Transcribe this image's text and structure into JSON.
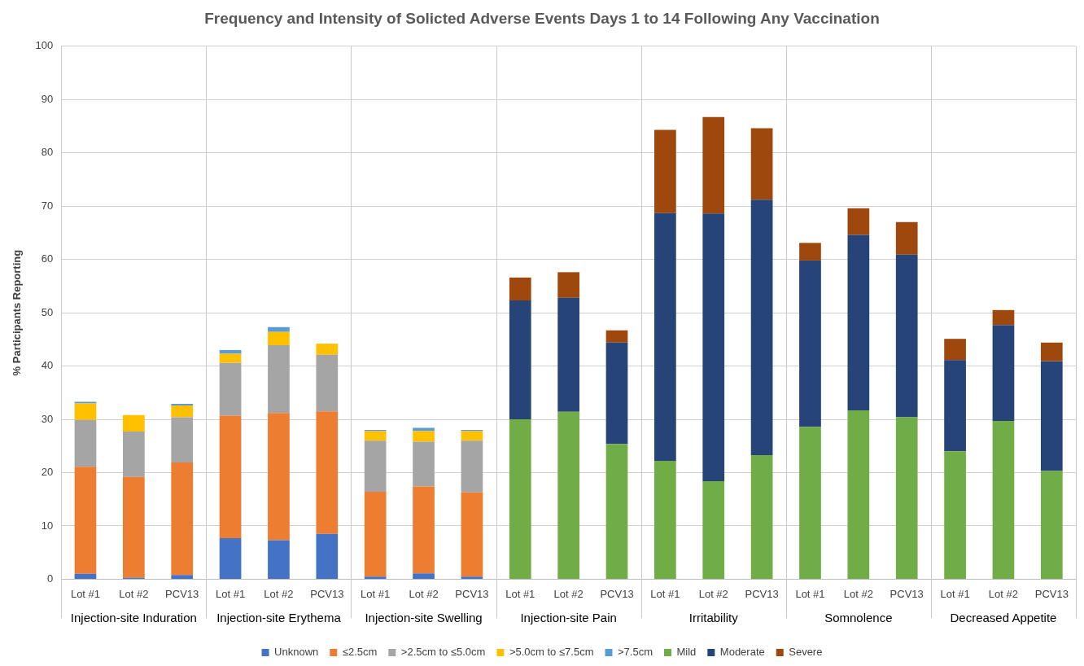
{
  "chart_data": {
    "type": "bar",
    "title": "Frequency and Intensity of Solicted Adverse Events Days 1 to 14 Following Any Vaccination",
    "ylabel": "% Participants Reporting",
    "categories": [
      "Lot #1",
      "Lot #2",
      "PCV13",
      "Lot #1",
      "Lot #2",
      "PCV13",
      "Lot #1",
      "Lot #2",
      "PCV13",
      "Lot #1",
      "Lot #2",
      "PCV13",
      "Lot #1",
      "Lot #2",
      "PCV13",
      "Lot #1",
      "Lot #2",
      "PCV13",
      "Lot #1",
      "Lot #2",
      "PCV13"
    ],
    "annotations": [
      "Injection-site Induration",
      "Injection-site Erythema",
      "Injection-site Swelling",
      "Injection-site Pain",
      "Irritability",
      "Somnolence",
      "Decreased Appetite"
    ],
    "stacked": true,
    "ylim": [
      0,
      100
    ],
    "yticks": [
      0,
      10,
      20,
      30,
      40,
      50,
      60,
      70,
      80,
      90,
      100
    ],
    "grid": true,
    "legend": "bottom",
    "series": [
      {
        "name": "Unknown",
        "color": "#4472c4",
        "values": [
          1.0,
          0.3,
          0.8,
          7.7,
          7.3,
          8.5,
          0.5,
          1.1,
          0.5,
          null,
          null,
          null,
          null,
          null,
          null,
          null,
          null,
          null,
          null,
          null,
          null
        ]
      },
      {
        "name": "≤2.5cm",
        "color": "#ed7d31",
        "values": [
          20.1,
          18.9,
          21.1,
          23.0,
          23.9,
          23.0,
          15.9,
          16.3,
          15.8,
          null,
          null,
          null,
          null,
          null,
          null,
          null,
          null,
          null,
          null,
          null,
          null
        ]
      },
      {
        "name": ">2.5cm to ≤5.0cm",
        "color": "#a5a5a5",
        "values": [
          8.8,
          8.5,
          8.5,
          9.9,
          12.7,
          10.6,
          9.6,
          8.4,
          9.7,
          null,
          null,
          null,
          null,
          null,
          null,
          null,
          null,
          null,
          null,
          null,
          null
        ]
      },
      {
        "name": ">5.0cm to ≤7.5cm",
        "color": "#ffc000",
        "values": [
          3.1,
          3.1,
          2.2,
          1.7,
          2.5,
          2.1,
          1.8,
          2.0,
          1.8,
          null,
          null,
          null,
          null,
          null,
          null,
          null,
          null,
          null,
          null,
          null,
          null
        ]
      },
      {
        "name": ">7.5cm",
        "color": "#5b9bd5",
        "values": [
          0.3,
          null,
          0.3,
          0.7,
          0.9,
          null,
          0.2,
          0.6,
          0.2,
          null,
          null,
          null,
          null,
          null,
          null,
          null,
          null,
          null,
          null,
          null,
          null
        ]
      },
      {
        "name": "Mild",
        "color": "#70ad47",
        "values": [
          null,
          null,
          null,
          null,
          null,
          null,
          null,
          null,
          null,
          30.0,
          31.4,
          25.4,
          22.2,
          18.4,
          23.3,
          28.6,
          31.7,
          30.4,
          24.0,
          29.7,
          20.3
        ]
      },
      {
        "name": "Moderate",
        "color": "#264478",
        "values": [
          null,
          null,
          null,
          null,
          null,
          null,
          null,
          null,
          null,
          22.3,
          21.4,
          19.0,
          46.5,
          50.2,
          47.9,
          31.2,
          32.9,
          30.5,
          17.1,
          18.0,
          20.6
        ]
      },
      {
        "name": "Severe",
        "color": "#9e480e",
        "values": [
          null,
          null,
          null,
          null,
          null,
          null,
          null,
          null,
          null,
          4.3,
          4.8,
          2.3,
          15.6,
          18.1,
          13.4,
          3.3,
          5.0,
          6.1,
          4.0,
          2.8,
          3.5
        ]
      }
    ]
  }
}
